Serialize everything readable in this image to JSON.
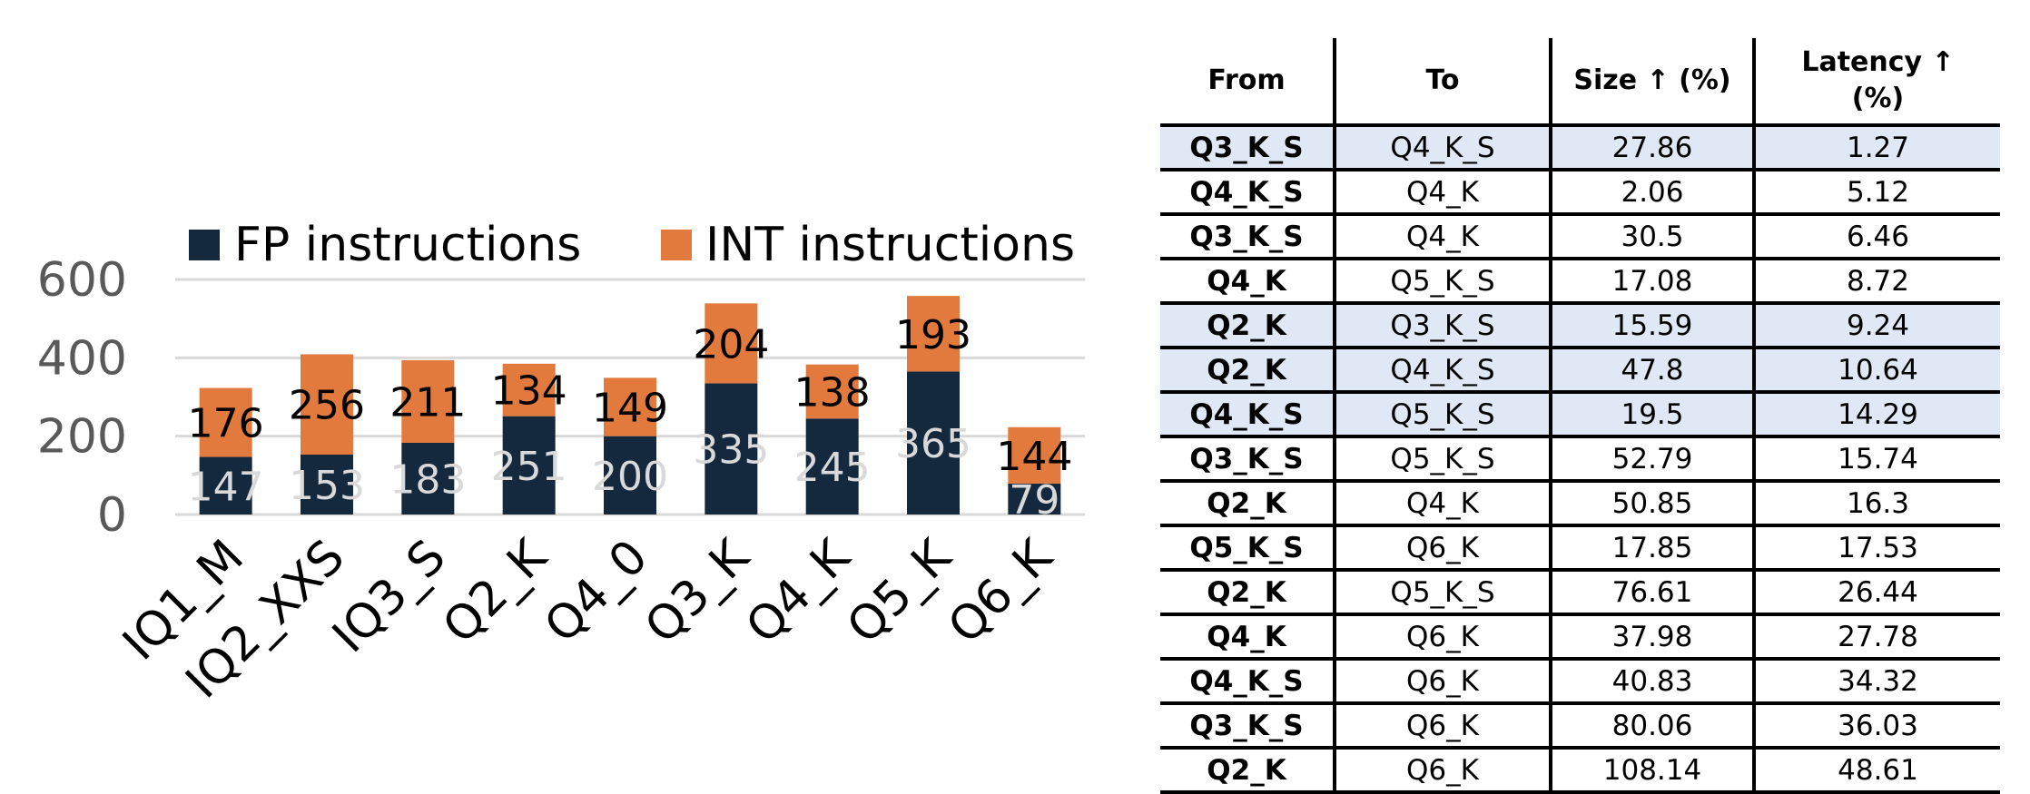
{
  "chart_data": {
    "type": "bar",
    "stacked": true,
    "title": "",
    "xlabel": "",
    "ylabel": "",
    "ylim": [
      0,
      600
    ],
    "yticks": [
      0,
      200,
      400,
      600
    ],
    "grid": true,
    "legend_position": "top",
    "categories": [
      "IQ1_M",
      "IQ2_XXS",
      "IQ3_S",
      "Q2_K",
      "Q4_0",
      "Q3_K",
      "Q4_K",
      "Q5_K",
      "Q6_K"
    ],
    "series": [
      {
        "name": "FP instructions",
        "color": "#15293e",
        "values": [
          147,
          153,
          183,
          251,
          200,
          335,
          245,
          365,
          79
        ]
      },
      {
        "name": "INT instructions",
        "color": "#e2793d",
        "values": [
          176,
          256,
          211,
          134,
          149,
          204,
          138,
          193,
          144
        ]
      }
    ]
  },
  "table": {
    "headers": {
      "from": "From",
      "to": "To",
      "size": "Size ↑ (%)",
      "latency_line1": "Latency ↑",
      "latency_line2": "(%)"
    },
    "rows": [
      {
        "from": "Q3_K_S",
        "to": "Q4_K_S",
        "size": "27.86",
        "latency": "1.27",
        "highlight": true
      },
      {
        "from": "Q4_K_S",
        "to": "Q4_K",
        "size": "2.06",
        "latency": "5.12",
        "highlight": false
      },
      {
        "from": "Q3_K_S",
        "to": "Q4_K",
        "size": "30.5",
        "latency": "6.46",
        "highlight": false
      },
      {
        "from": "Q4_K",
        "to": "Q5_K_S",
        "size": "17.08",
        "latency": "8.72",
        "highlight": false
      },
      {
        "from": "Q2_K",
        "to": "Q3_K_S",
        "size": "15.59",
        "latency": "9.24",
        "highlight": true
      },
      {
        "from": "Q2_K",
        "to": "Q4_K_S",
        "size": "47.8",
        "latency": "10.64",
        "highlight": true
      },
      {
        "from": "Q4_K_S",
        "to": "Q5_K_S",
        "size": "19.5",
        "latency": "14.29",
        "highlight": true
      },
      {
        "from": "Q3_K_S",
        "to": "Q5_K_S",
        "size": "52.79",
        "latency": "15.74",
        "highlight": false
      },
      {
        "from": "Q2_K",
        "to": "Q4_K",
        "size": "50.85",
        "latency": "16.3",
        "highlight": false
      },
      {
        "from": "Q5_K_S",
        "to": "Q6_K",
        "size": "17.85",
        "latency": "17.53",
        "highlight": false
      },
      {
        "from": "Q2_K",
        "to": "Q5_K_S",
        "size": "76.61",
        "latency": "26.44",
        "highlight": false
      },
      {
        "from": "Q4_K",
        "to": "Q6_K",
        "size": "37.98",
        "latency": "27.78",
        "highlight": false
      },
      {
        "from": "Q4_K_S",
        "to": "Q6_K",
        "size": "40.83",
        "latency": "34.32",
        "highlight": false
      },
      {
        "from": "Q3_K_S",
        "to": "Q6_K",
        "size": "80.06",
        "latency": "36.03",
        "highlight": false
      },
      {
        "from": "Q2_K",
        "to": "Q6_K",
        "size": "108.14",
        "latency": "48.61",
        "highlight": false
      }
    ]
  }
}
